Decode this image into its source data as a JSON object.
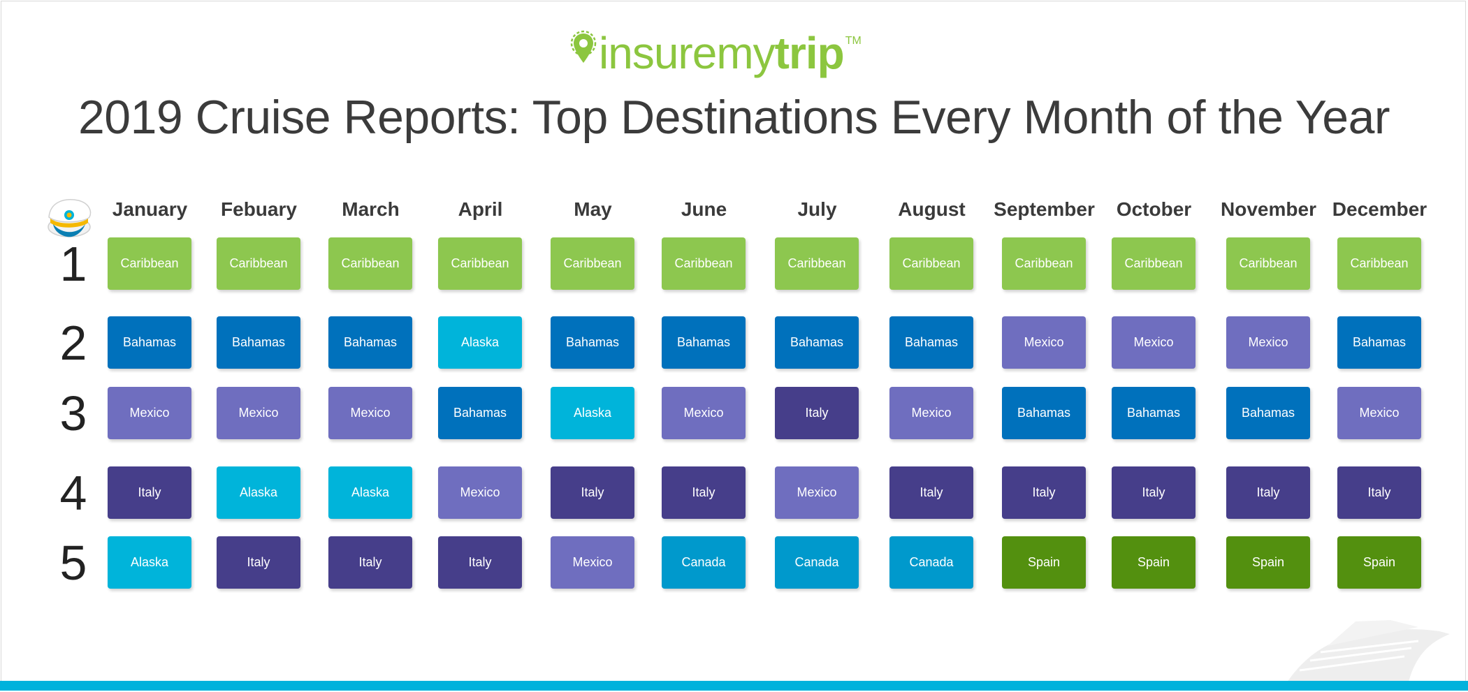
{
  "brand": {
    "name_light": "insuremy",
    "name_bold": "trip",
    "trademark": "TM"
  },
  "title": "2019 Cruise Reports: Top Destinations Every Month of the Year",
  "icons": [
    "captain-hat-icon",
    "cruise-ship-icon",
    "location-pin-icon"
  ],
  "colors": {
    "Caribbean": "#8dc74f",
    "Bahamas": "#0071bc",
    "Mexico": "#6f6ebf",
    "Italy": "#463e8a",
    "Alaska": "#00b4da",
    "Canada": "#0099cc",
    "Spain": "#53900f",
    "accent_bar": "#00b2dc",
    "logo_green": "#8cc63f"
  },
  "chart_data": {
    "type": "table",
    "title": "2019 Cruise Reports: Top Destinations Every Month of the Year",
    "columns": [
      "January",
      "Febuary",
      "March",
      "April",
      "May",
      "June",
      "July",
      "August",
      "September",
      "October",
      "November",
      "December"
    ],
    "rows": [
      "1",
      "2",
      "3",
      "4",
      "5"
    ],
    "cells": [
      [
        "Caribbean",
        "Caribbean",
        "Caribbean",
        "Caribbean",
        "Caribbean",
        "Caribbean",
        "Caribbean",
        "Caribbean",
        "Caribbean",
        "Caribbean",
        "Caribbean",
        "Caribbean"
      ],
      [
        "Bahamas",
        "Bahamas",
        "Bahamas",
        "Alaska",
        "Bahamas",
        "Bahamas",
        "Bahamas",
        "Bahamas",
        "Mexico",
        "Mexico",
        "Mexico",
        "Bahamas"
      ],
      [
        "Mexico",
        "Mexico",
        "Mexico",
        "Bahamas",
        "Alaska",
        "Mexico",
        "Italy",
        "Mexico",
        "Bahamas",
        "Bahamas",
        "Bahamas",
        "Mexico"
      ],
      [
        "Italy",
        "Alaska",
        "Alaska",
        "Mexico",
        "Italy",
        "Italy",
        "Mexico",
        "Italy",
        "Italy",
        "Italy",
        "Italy",
        "Italy"
      ],
      [
        "Alaska",
        "Italy",
        "Italy",
        "Italy",
        "Mexico",
        "Canada",
        "Canada",
        "Canada",
        "Spain",
        "Spain",
        "Spain",
        "Spain"
      ]
    ]
  }
}
